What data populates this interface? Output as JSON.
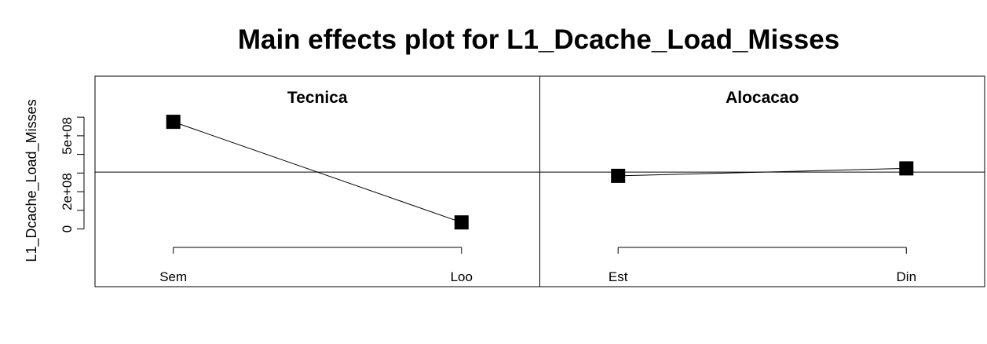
{
  "chart_data": {
    "type": "line",
    "title": "Main effects plot for L1_Dcache_Load_Misses",
    "ylabel": "L1_Dcache_Load_Misses",
    "xlabel": "",
    "ylim": [
      -310000000,
      820000000
    ],
    "grand_mean": 305000000,
    "y_ticks": [
      {
        "value": 0,
        "label": "0"
      },
      {
        "value": 100000000,
        "label": ""
      },
      {
        "value": 200000000,
        "label": "2e+08"
      },
      {
        "value": 300000000,
        "label": ""
      },
      {
        "value": 400000000,
        "label": ""
      },
      {
        "value": 500000000,
        "label": "5e+08"
      },
      {
        "value": 600000000,
        "label": ""
      }
    ],
    "panels": [
      {
        "factor": "Tecnica",
        "levels": [
          "Sem",
          "Loo"
        ],
        "values": [
          575000000,
          35000000
        ]
      },
      {
        "factor": "Alocacao",
        "levels": [
          "Est",
          "Din"
        ],
        "values": [
          285000000,
          325000000
        ]
      }
    ],
    "grid": false,
    "legend": "none",
    "colors": {
      "line": "#000000",
      "marker": "#000000",
      "background": "#ffffff"
    }
  }
}
